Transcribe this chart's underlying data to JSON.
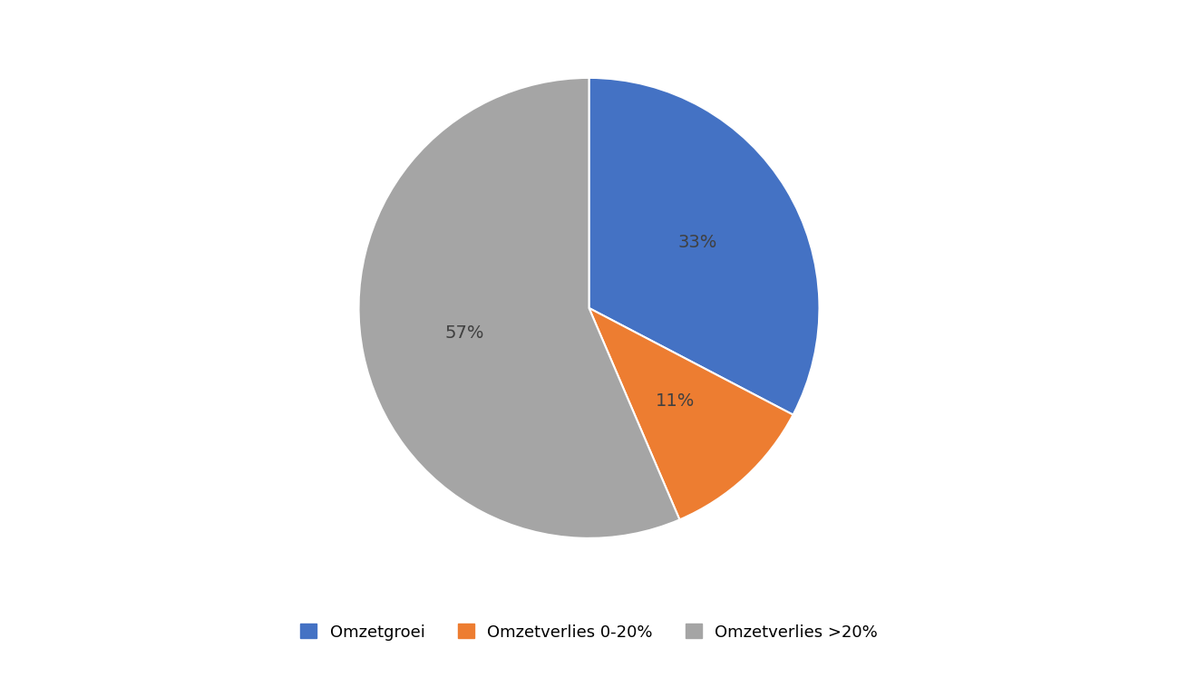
{
  "slices": [
    33,
    11,
    57
  ],
  "labels": [
    "Omzetgroei",
    "Omzetverlies 0-20%",
    "Omzetverlies >20%"
  ],
  "colors": [
    "#4472C4",
    "#ED7D31",
    "#A5A5A5"
  ],
  "pct_labels": [
    "33%",
    "11%",
    "57%"
  ],
  "background_color": "#FFFFFF",
  "legend_fontsize": 13,
  "pct_fontsize": 14,
  "startangle": 90
}
